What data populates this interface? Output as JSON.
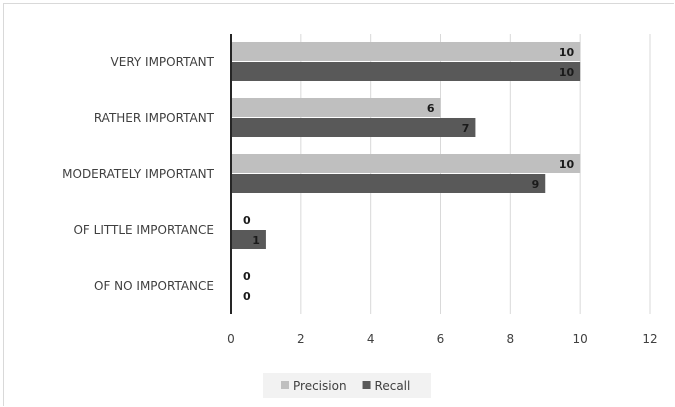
{
  "chart_data": {
    "type": "bar",
    "orientation": "horizontal",
    "categories": [
      "VERY IMPORTANT",
      "RATHER IMPORTANT",
      "MODERATELY IMPORTANT",
      "OF LITTLE IMPORTANCE",
      "OF NO IMPORTANCE"
    ],
    "series": [
      {
        "name": "Precision",
        "color": "#bfbfbf",
        "values": [
          10,
          6,
          10,
          0,
          0
        ]
      },
      {
        "name": "Recall",
        "color": "#595959",
        "values": [
          10,
          7,
          9,
          1,
          0
        ]
      }
    ],
    "xlim": [
      0,
      12
    ],
    "xticks": [
      "0",
      "2",
      "4",
      "6",
      "8",
      "10",
      "12"
    ],
    "data_labels": true,
    "grid": "vertical",
    "legend_position": "bottom"
  }
}
